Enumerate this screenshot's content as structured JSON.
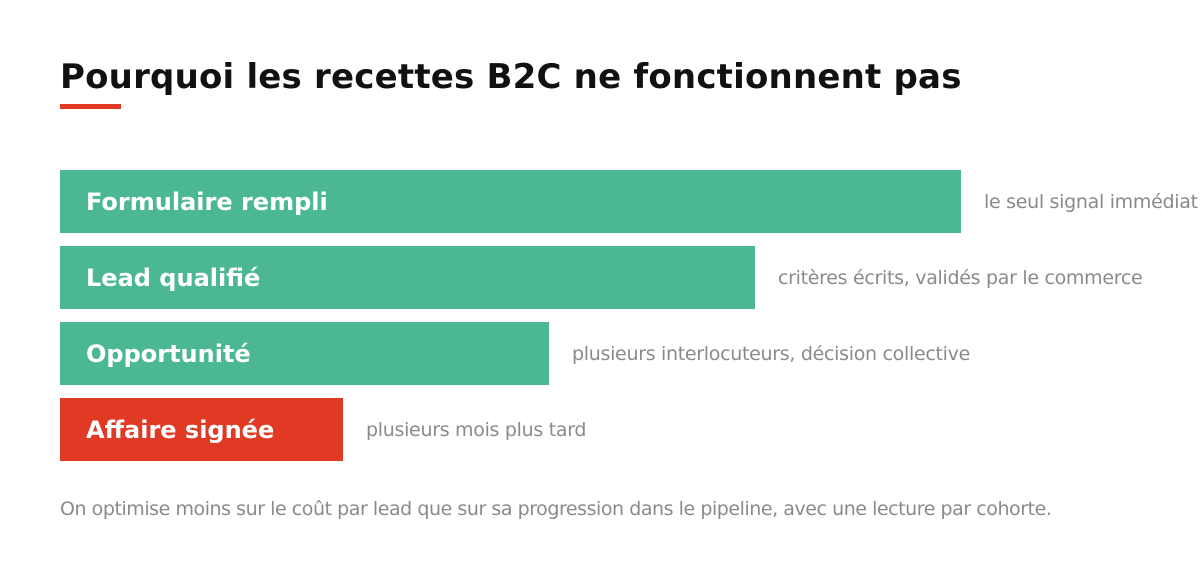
{
  "title": "Pourquoi les recettes B2C ne fonctionnent pas",
  "colors": {
    "accent": "#e03a25",
    "teal": "#4bb795",
    "text_dark": "#111111",
    "text_muted": "#8a8a8a"
  },
  "funnel": {
    "stages": [
      {
        "label": "Formulaire rempli",
        "note": "le seul signal immédiat",
        "relative_width": 1.0,
        "color": "#4bb795"
      },
      {
        "label": "Lead qualifié",
        "note": "critères écrits, validés par le commerce",
        "relative_width": 0.771,
        "color": "#4bb795"
      },
      {
        "label": "Opportunité",
        "note": "plusieurs interlocuteurs, décision collective",
        "relative_width": 0.543,
        "color": "#4bb795"
      },
      {
        "label": "Affaire signée",
        "note": "plusieurs mois plus tard",
        "relative_width": 0.314,
        "color": "#e03a25"
      }
    ]
  },
  "footer": "On optimise moins sur le coût par lead que sur sa progression dans le pipeline, avec une lecture par cohorte."
}
